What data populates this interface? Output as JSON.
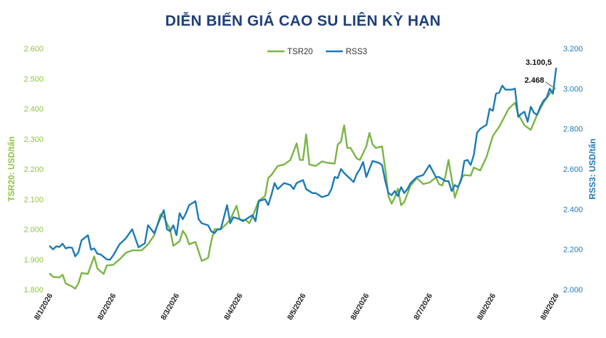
{
  "chart_data": {
    "type": "line",
    "title": "DIỄN BIẾN GIÁ CAO SU LIÊN KỲ HẠN",
    "ylabel_left": "TSR20: USD/tấn",
    "ylabel_right": "RSS3: USD/tấn",
    "ylim_left": [
      1800,
      2600
    ],
    "ylim_right": [
      2000,
      3200
    ],
    "yticks_left": [
      "1.800",
      "1.900",
      "2.000",
      "2.100",
      "2.200",
      "2.300",
      "2.400",
      "2.500",
      "2.600"
    ],
    "yticks_right": [
      "2.000",
      "2.200",
      "2.400",
      "2.600",
      "2.800",
      "3.000",
      "3.200"
    ],
    "x_tick_labels": [
      "8/1/2026",
      "8/2/2026",
      "8/3/2026",
      "8/4/2026",
      "8/5/2026",
      "8/6/2026",
      "8/7/2026",
      "8/8/2026",
      "8/9/2026"
    ],
    "x_range": [
      0,
      8
    ],
    "legend_position": "top-center",
    "grid": false,
    "series": [
      {
        "name": "TSR20",
        "color": "#79b543",
        "axis": "left",
        "points": [
          [
            0.0,
            1852
          ],
          [
            0.05,
            1842
          ],
          [
            0.15,
            1840
          ],
          [
            0.2,
            1849
          ],
          [
            0.25,
            1820
          ],
          [
            0.35,
            1810
          ],
          [
            0.4,
            1803
          ],
          [
            0.45,
            1820
          ],
          [
            0.5,
            1855
          ],
          [
            0.6,
            1852
          ],
          [
            0.7,
            1910
          ],
          [
            0.75,
            1870
          ],
          [
            0.8,
            1860
          ],
          [
            0.85,
            1852
          ],
          [
            0.9,
            1880
          ],
          [
            1.0,
            1882
          ],
          [
            1.1,
            1900
          ],
          [
            1.2,
            1922
          ],
          [
            1.3,
            1930
          ],
          [
            1.45,
            1930
          ],
          [
            1.55,
            1950
          ],
          [
            1.65,
            1980
          ],
          [
            1.75,
            2050
          ],
          [
            1.8,
            2040
          ],
          [
            1.9,
            1998
          ],
          [
            1.95,
            1945
          ],
          [
            2.05,
            1960
          ],
          [
            2.1,
            1995
          ],
          [
            2.15,
            1980
          ],
          [
            2.2,
            1950
          ],
          [
            2.3,
            1958
          ],
          [
            2.4,
            1895
          ],
          [
            2.5,
            1905
          ],
          [
            2.55,
            1960
          ],
          [
            2.6,
            2000
          ],
          [
            2.7,
            2000
          ],
          [
            2.8,
            2020
          ],
          [
            2.85,
            2032
          ],
          [
            2.95,
            2078
          ],
          [
            3.0,
            2032
          ],
          [
            3.1,
            2030
          ],
          [
            3.15,
            2020
          ],
          [
            3.2,
            2040
          ],
          [
            3.3,
            2095
          ],
          [
            3.4,
            2110
          ],
          [
            3.45,
            2170
          ],
          [
            3.5,
            2180
          ],
          [
            3.6,
            2210
          ],
          [
            3.7,
            2215
          ],
          [
            3.8,
            2230
          ],
          [
            3.9,
            2285
          ],
          [
            3.95,
            2230
          ],
          [
            4.0,
            2230
          ],
          [
            4.05,
            2315
          ],
          [
            4.1,
            2215
          ],
          [
            4.2,
            2210
          ],
          [
            4.3,
            2225
          ],
          [
            4.4,
            2220
          ],
          [
            4.5,
            2218
          ],
          [
            4.55,
            2282
          ],
          [
            4.6,
            2290
          ],
          [
            4.65,
            2345
          ],
          [
            4.7,
            2270
          ],
          [
            4.75,
            2270
          ],
          [
            4.85,
            2235
          ],
          [
            4.9,
            2230
          ],
          [
            5.0,
            2275
          ],
          [
            5.05,
            2320
          ],
          [
            5.1,
            2282
          ],
          [
            5.15,
            2270
          ],
          [
            5.25,
            2275
          ],
          [
            5.3,
            2200
          ],
          [
            5.35,
            2110
          ],
          [
            5.4,
            2085
          ],
          [
            5.45,
            2105
          ],
          [
            5.5,
            2135
          ],
          [
            5.55,
            2080
          ],
          [
            5.6,
            2090
          ],
          [
            5.7,
            2145
          ],
          [
            5.8,
            2170
          ],
          [
            5.9,
            2150
          ],
          [
            6.0,
            2155
          ],
          [
            6.1,
            2172
          ],
          [
            6.15,
            2150
          ],
          [
            6.2,
            2145
          ],
          [
            6.25,
            2175
          ],
          [
            6.3,
            2230
          ],
          [
            6.4,
            2105
          ],
          [
            6.5,
            2170
          ],
          [
            6.55,
            2180
          ],
          [
            6.65,
            2178
          ],
          [
            6.7,
            2205
          ],
          [
            6.8,
            2195
          ],
          [
            6.9,
            2240
          ],
          [
            7.0,
            2310
          ],
          [
            7.1,
            2340
          ],
          [
            7.15,
            2360
          ],
          [
            7.2,
            2380
          ],
          [
            7.25,
            2400
          ],
          [
            7.35,
            2420
          ],
          [
            7.4,
            2382
          ],
          [
            7.5,
            2345
          ],
          [
            7.6,
            2330
          ],
          [
            7.7,
            2380
          ],
          [
            7.8,
            2420
          ],
          [
            7.9,
            2450
          ],
          [
            7.98,
            2468
          ]
        ]
      },
      {
        "name": "RSS3",
        "color": "#1a7ab8",
        "axis": "right",
        "points": [
          [
            0.0,
            2215
          ],
          [
            0.05,
            2200
          ],
          [
            0.1,
            2215
          ],
          [
            0.15,
            2212
          ],
          [
            0.2,
            2228
          ],
          [
            0.25,
            2205
          ],
          [
            0.3,
            2210
          ],
          [
            0.35,
            2208
          ],
          [
            0.4,
            2165
          ],
          [
            0.45,
            2185
          ],
          [
            0.5,
            2245
          ],
          [
            0.6,
            2270
          ],
          [
            0.65,
            2198
          ],
          [
            0.7,
            2205
          ],
          [
            0.75,
            2178
          ],
          [
            0.8,
            2175
          ],
          [
            0.9,
            2150
          ],
          [
            0.95,
            2148
          ],
          [
            1.0,
            2170
          ],
          [
            1.1,
            2225
          ],
          [
            1.2,
            2255
          ],
          [
            1.3,
            2300
          ],
          [
            1.4,
            2210
          ],
          [
            1.5,
            2230
          ],
          [
            1.55,
            2320
          ],
          [
            1.6,
            2300
          ],
          [
            1.65,
            2280
          ],
          [
            1.75,
            2360
          ],
          [
            1.8,
            2395
          ],
          [
            1.85,
            2300
          ],
          [
            1.9,
            2290
          ],
          [
            1.95,
            2320
          ],
          [
            2.0,
            2270
          ],
          [
            2.05,
            2380
          ],
          [
            2.1,
            2350
          ],
          [
            2.15,
            2380
          ],
          [
            2.2,
            2420
          ],
          [
            2.3,
            2440
          ],
          [
            2.35,
            2350
          ],
          [
            2.4,
            2330
          ],
          [
            2.5,
            2320
          ],
          [
            2.55,
            2290
          ],
          [
            2.6,
            2280
          ],
          [
            2.65,
            2300
          ],
          [
            2.7,
            2300
          ],
          [
            2.75,
            2360
          ],
          [
            2.8,
            2420
          ],
          [
            2.85,
            2330
          ],
          [
            2.9,
            2360
          ],
          [
            3.0,
            2350
          ],
          [
            3.05,
            2340
          ],
          [
            3.1,
            2350
          ],
          [
            3.2,
            2370
          ],
          [
            3.25,
            2340
          ],
          [
            3.3,
            2440
          ],
          [
            3.4,
            2450
          ],
          [
            3.45,
            2420
          ],
          [
            3.5,
            2470
          ],
          [
            3.55,
            2530
          ],
          [
            3.6,
            2500
          ],
          [
            3.7,
            2530
          ],
          [
            3.8,
            2520
          ],
          [
            3.85,
            2500
          ],
          [
            3.9,
            2530
          ],
          [
            4.0,
            2545
          ],
          [
            4.05,
            2500
          ],
          [
            4.15,
            2480
          ],
          [
            4.2,
            2480
          ],
          [
            4.3,
            2460
          ],
          [
            4.4,
            2470
          ],
          [
            4.45,
            2500
          ],
          [
            4.5,
            2560
          ],
          [
            4.55,
            2555
          ],
          [
            4.6,
            2600
          ],
          [
            4.65,
            2580
          ],
          [
            4.7,
            2565
          ],
          [
            4.75,
            2550
          ],
          [
            4.8,
            2535
          ],
          [
            4.85,
            2575
          ],
          [
            4.9,
            2600
          ],
          [
            4.95,
            2635
          ],
          [
            5.0,
            2560
          ],
          [
            5.05,
            2600
          ],
          [
            5.1,
            2640
          ],
          [
            5.2,
            2630
          ],
          [
            5.25,
            2620
          ],
          [
            5.3,
            2540
          ],
          [
            5.35,
            2480
          ],
          [
            5.4,
            2470
          ],
          [
            5.45,
            2490
          ],
          [
            5.5,
            2465
          ],
          [
            5.55,
            2510
          ],
          [
            5.6,
            2480
          ],
          [
            5.65,
            2500
          ],
          [
            5.7,
            2530
          ],
          [
            5.8,
            2560
          ],
          [
            5.9,
            2570
          ],
          [
            6.0,
            2620
          ],
          [
            6.05,
            2590
          ],
          [
            6.1,
            2560
          ],
          [
            6.15,
            2560
          ],
          [
            6.25,
            2540
          ],
          [
            6.3,
            2540
          ],
          [
            6.35,
            2490
          ],
          [
            6.4,
            2520
          ],
          [
            6.45,
            2510
          ],
          [
            6.5,
            2545
          ],
          [
            6.55,
            2640
          ],
          [
            6.6,
            2645
          ],
          [
            6.65,
            2620
          ],
          [
            6.7,
            2670
          ],
          [
            6.75,
            2780
          ],
          [
            6.8,
            2800
          ],
          [
            6.9,
            2820
          ],
          [
            6.95,
            2900
          ],
          [
            7.0,
            2890
          ],
          [
            7.05,
            2975
          ],
          [
            7.1,
            2980
          ],
          [
            7.15,
            3015
          ],
          [
            7.2,
            2995
          ],
          [
            7.3,
            2995
          ],
          [
            7.35,
            3000
          ],
          [
            7.4,
            2860
          ],
          [
            7.45,
            2875
          ],
          [
            7.5,
            2885
          ],
          [
            7.55,
            2835
          ],
          [
            7.6,
            2910
          ],
          [
            7.65,
            2880
          ],
          [
            7.7,
            2870
          ],
          [
            7.75,
            2910
          ],
          [
            7.8,
            2940
          ],
          [
            7.85,
            2955
          ],
          [
            7.9,
            3000
          ],
          [
            7.95,
            2975
          ],
          [
            8.0,
            3100.5
          ]
        ]
      }
    ],
    "annotations": [
      {
        "text": "3.100,5",
        "series": "RSS3"
      },
      {
        "text": "2.468",
        "series": "TSR20"
      }
    ]
  }
}
